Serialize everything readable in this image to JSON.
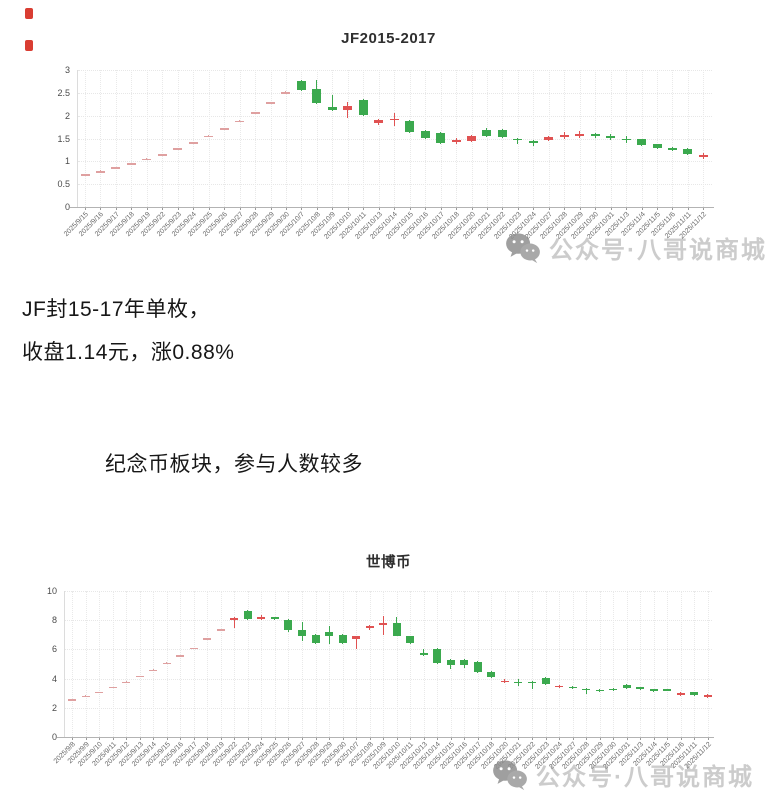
{
  "annotations": {
    "line1": "JF封15-17年单枚，",
    "line2": "收盘1.14元，涨0.88%",
    "line3": "纪念币板块，参与人数较多"
  },
  "watermark": {
    "text": "公众号·八哥说商城",
    "icon": "wechat-icon"
  },
  "colors": {
    "up_red": "#e05252",
    "down_green": "#3ba94e",
    "flat_pink": "#dfa0a0",
    "grid": "#e8e8e8",
    "axis": "#b3b3b3",
    "tick_label": "#666666",
    "title": "#2f2f2f",
    "marker_red": "#d93d32"
  },
  "chart_data": [
    {
      "type": "candlestick",
      "title": "JF2015-2017",
      "ylabel": "",
      "xlabel": "",
      "ylim": [
        0,
        3
      ],
      "yticks": [
        0,
        0.5,
        1,
        1.5,
        2,
        2.5,
        3
      ],
      "grid": true,
      "dates": [
        "2025/9/15",
        "2025/9/16",
        "2025/9/17",
        "2025/9/18",
        "2025/9/19",
        "2025/9/22",
        "2025/9/23",
        "2025/9/24",
        "2025/9/25",
        "2025/9/26",
        "2025/9/27",
        "2025/9/28",
        "2025/9/29",
        "2025/9/30",
        "2025/10/7",
        "2025/10/8",
        "2025/10/9",
        "2025/10/10",
        "2025/10/11",
        "2025/10/13",
        "2025/10/14",
        "2025/10/15",
        "2025/10/16",
        "2025/10/17",
        "2025/10/18",
        "2025/10/20",
        "2025/10/21",
        "2025/10/22",
        "2025/10/23",
        "2025/10/24",
        "2025/10/27",
        "2025/10/28",
        "2025/10/29",
        "2025/10/30",
        "2025/10/31",
        "2025/11/3",
        "2025/11/4",
        "2025/11/5",
        "2025/11/6",
        "2025/11/11",
        "2025/11/12"
      ],
      "candles_ochl_kind": [
        [
          0.71,
          0.72,
          0.7,
          0.73,
          "p"
        ],
        [
          0.78,
          0.79,
          0.77,
          0.8,
          "p"
        ],
        [
          0.86,
          0.87,
          0.85,
          0.88,
          "p"
        ],
        [
          0.95,
          0.96,
          0.94,
          0.97,
          "p"
        ],
        [
          1.05,
          1.06,
          1.04,
          1.07,
          "p"
        ],
        [
          1.15,
          1.16,
          1.14,
          1.17,
          "p"
        ],
        [
          1.28,
          1.29,
          1.27,
          1.3,
          "p"
        ],
        [
          1.41,
          1.42,
          1.4,
          1.43,
          "p"
        ],
        [
          1.55,
          1.56,
          1.54,
          1.57,
          "p"
        ],
        [
          1.71,
          1.72,
          1.7,
          1.73,
          "p"
        ],
        [
          1.88,
          1.89,
          1.87,
          1.9,
          "p"
        ],
        [
          2.07,
          2.08,
          2.06,
          2.09,
          "p"
        ],
        [
          2.28,
          2.29,
          2.27,
          2.3,
          "p"
        ],
        [
          2.51,
          2.52,
          2.5,
          2.53,
          "p"
        ],
        [
          2.76,
          2.56,
          2.54,
          2.78,
          "g"
        ],
        [
          2.58,
          2.28,
          2.26,
          2.78,
          "g"
        ],
        [
          2.18,
          2.13,
          2.1,
          2.45,
          "g"
        ],
        [
          2.12,
          2.22,
          1.95,
          2.3,
          "r"
        ],
        [
          2.35,
          2.02,
          2.0,
          2.37,
          "g"
        ],
        [
          1.84,
          1.9,
          1.79,
          1.93,
          "r"
        ],
        [
          1.9,
          1.93,
          1.78,
          2.05,
          "r"
        ],
        [
          1.88,
          1.64,
          1.62,
          1.9,
          "g"
        ],
        [
          1.66,
          1.5,
          1.48,
          1.68,
          "g"
        ],
        [
          1.62,
          1.4,
          1.38,
          1.64,
          "g"
        ],
        [
          1.42,
          1.46,
          1.37,
          1.52,
          "r"
        ],
        [
          1.44,
          1.56,
          1.42,
          1.58,
          "r"
        ],
        [
          1.68,
          1.56,
          1.54,
          1.72,
          "g"
        ],
        [
          1.68,
          1.54,
          1.52,
          1.7,
          "g"
        ],
        [
          1.5,
          1.46,
          1.38,
          1.52,
          "g"
        ],
        [
          1.45,
          1.4,
          1.34,
          1.47,
          "g"
        ],
        [
          1.47,
          1.53,
          1.45,
          1.55,
          "r"
        ],
        [
          1.54,
          1.57,
          1.48,
          1.65,
          "r"
        ],
        [
          1.57,
          1.59,
          1.51,
          1.66,
          "r"
        ],
        [
          1.59,
          1.56,
          1.5,
          1.63,
          "g"
        ],
        [
          1.55,
          1.52,
          1.46,
          1.6,
          "g"
        ],
        [
          1.5,
          1.47,
          1.4,
          1.55,
          "g"
        ],
        [
          1.48,
          1.36,
          1.34,
          1.5,
          "g"
        ],
        [
          1.37,
          1.3,
          1.27,
          1.39,
          "g"
        ],
        [
          1.29,
          1.26,
          1.22,
          1.32,
          "g"
        ],
        [
          1.27,
          1.16,
          1.14,
          1.29,
          "g"
        ],
        [
          1.13,
          1.14,
          1.05,
          1.18,
          "r"
        ]
      ]
    },
    {
      "type": "candlestick",
      "title": "世博币",
      "ylabel": "",
      "xlabel": "",
      "ylim": [
        0,
        10
      ],
      "yticks": [
        0,
        2,
        4,
        6,
        8,
        10
      ],
      "grid": true,
      "dates": [
        "2025/9/8",
        "2025/9/9",
        "2025/9/10",
        "2025/9/11",
        "2025/9/12",
        "2025/9/13",
        "2025/9/14",
        "2025/9/15",
        "2025/9/16",
        "2025/9/17",
        "2025/9/18",
        "2025/9/19",
        "2025/9/22",
        "2025/9/23",
        "2025/9/24",
        "2025/9/25",
        "2025/9/26",
        "2025/9/27",
        "2025/9/28",
        "2025/9/29",
        "2025/9/30",
        "2025/10/7",
        "2025/10/8",
        "2025/10/9",
        "2025/10/10",
        "2025/10/11",
        "2025/10/13",
        "2025/10/14",
        "2025/10/15",
        "2025/10/16",
        "2025/10/17",
        "2025/10/18",
        "2025/10/20",
        "2025/10/21",
        "2025/10/22",
        "2025/10/23",
        "2025/10/24",
        "2025/10/27",
        "2025/10/28",
        "2025/10/29",
        "2025/10/30",
        "2025/10/31",
        "2025/11/3",
        "2025/11/4",
        "2025/11/5",
        "2025/11/6",
        "2025/11/11",
        "2025/11/12"
      ],
      "candles_ochl_kind": [
        [
          2.58,
          2.6,
          2.57,
          2.61,
          "p"
        ],
        [
          2.82,
          2.84,
          2.81,
          2.85,
          "p"
        ],
        [
          3.08,
          3.1,
          3.07,
          3.11,
          "p"
        ],
        [
          3.42,
          3.44,
          3.41,
          3.45,
          "p"
        ],
        [
          3.78,
          3.8,
          3.77,
          3.81,
          "p"
        ],
        [
          4.18,
          4.2,
          4.17,
          4.21,
          "p"
        ],
        [
          4.6,
          4.62,
          4.59,
          4.63,
          "p"
        ],
        [
          5.08,
          5.1,
          5.07,
          5.11,
          "p"
        ],
        [
          5.58,
          5.6,
          5.57,
          5.61,
          "p"
        ],
        [
          6.1,
          6.12,
          6.09,
          6.13,
          "p"
        ],
        [
          6.73,
          6.75,
          6.72,
          6.76,
          "p"
        ],
        [
          7.38,
          7.4,
          7.37,
          7.41,
          "p"
        ],
        [
          8.05,
          8.15,
          7.45,
          8.25,
          "r"
        ],
        [
          8.65,
          8.1,
          8.0,
          8.7,
          "g"
        ],
        [
          8.1,
          8.2,
          8.0,
          8.35,
          "r"
        ],
        [
          8.2,
          8.05,
          8.0,
          8.25,
          "g"
        ],
        [
          8.0,
          7.3,
          7.2,
          8.05,
          "g"
        ],
        [
          7.3,
          6.95,
          6.6,
          7.85,
          "g"
        ],
        [
          7.0,
          6.45,
          6.4,
          7.05,
          "g"
        ],
        [
          7.2,
          6.9,
          6.4,
          7.6,
          "g"
        ],
        [
          7.0,
          6.45,
          6.4,
          7.05,
          "g"
        ],
        [
          6.7,
          6.9,
          6.0,
          6.95,
          "r"
        ],
        [
          7.45,
          7.6,
          7.3,
          7.65,
          "r"
        ],
        [
          7.7,
          7.78,
          7.0,
          8.3,
          "r"
        ],
        [
          7.8,
          6.95,
          6.9,
          8.2,
          "g"
        ],
        [
          6.9,
          6.45,
          6.4,
          6.95,
          "g"
        ],
        [
          5.75,
          5.68,
          5.58,
          6.05,
          "g"
        ],
        [
          6.05,
          5.1,
          5.0,
          6.1,
          "g"
        ],
        [
          5.3,
          4.95,
          4.65,
          5.35,
          "g"
        ],
        [
          5.28,
          4.95,
          4.7,
          5.32,
          "g"
        ],
        [
          5.15,
          4.45,
          4.4,
          5.2,
          "g"
        ],
        [
          4.45,
          4.1,
          4.05,
          4.5,
          "g"
        ],
        [
          3.78,
          3.86,
          3.7,
          3.95,
          "r"
        ],
        [
          3.8,
          3.7,
          3.5,
          3.95,
          "g"
        ],
        [
          3.78,
          3.72,
          3.3,
          3.85,
          "g"
        ],
        [
          4.05,
          3.62,
          3.58,
          4.1,
          "g"
        ],
        [
          3.4,
          3.5,
          3.35,
          3.55,
          "r"
        ],
        [
          3.45,
          3.38,
          3.32,
          3.5,
          "g"
        ],
        [
          3.3,
          3.25,
          2.95,
          3.35,
          "g"
        ],
        [
          3.25,
          3.18,
          3.1,
          3.3,
          "g"
        ],
        [
          3.3,
          3.24,
          3.18,
          3.35,
          "g"
        ],
        [
          3.55,
          3.35,
          3.3,
          3.6,
          "g"
        ],
        [
          3.4,
          3.28,
          3.22,
          3.45,
          "g"
        ],
        [
          3.28,
          3.12,
          3.08,
          3.32,
          "g"
        ],
        [
          3.28,
          3.2,
          3.15,
          3.32,
          "g"
        ],
        [
          2.95,
          3.02,
          2.8,
          3.08,
          "r"
        ],
        [
          3.05,
          2.85,
          2.8,
          3.1,
          "g"
        ],
        [
          2.82,
          2.86,
          2.65,
          2.95,
          "r"
        ]
      ]
    }
  ]
}
